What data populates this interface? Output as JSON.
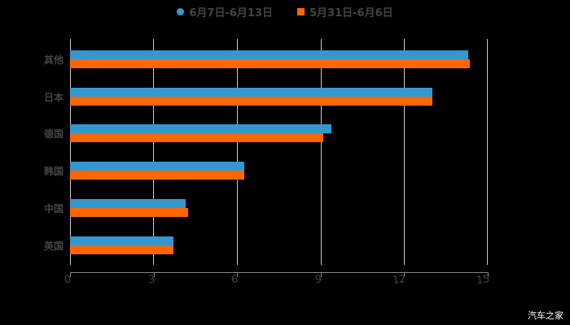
{
  "chart_data": {
    "type": "bar",
    "orientation": "horizontal",
    "categories": [
      "其他",
      "日本",
      "德国",
      "韩国",
      "中国",
      "英国"
    ],
    "series": [
      {
        "name": "6月7日-6月13日",
        "color": "#3399CC",
        "values": [
          14.3,
          13.0,
          9.4,
          6.25,
          4.15,
          3.7
        ]
      },
      {
        "name": "5月31日-6月6日",
        "color": "#FF6600",
        "values": [
          14.35,
          13.0,
          9.1,
          6.25,
          4.25,
          3.7
        ]
      }
    ],
    "title": "",
    "xlabel": "",
    "ylabel": "",
    "xlim": [
      0,
      15
    ],
    "xticks": [
      "0",
      "3",
      "6",
      "9",
      "12",
      "15"
    ],
    "grid": true,
    "legend_position": "top"
  },
  "legend": [
    {
      "label": "6月7日-6月13日",
      "color": "#3399CC"
    },
    {
      "label": "5月31日-6月6日",
      "color": "#FF6600"
    }
  ],
  "watermark": "汽车之家"
}
